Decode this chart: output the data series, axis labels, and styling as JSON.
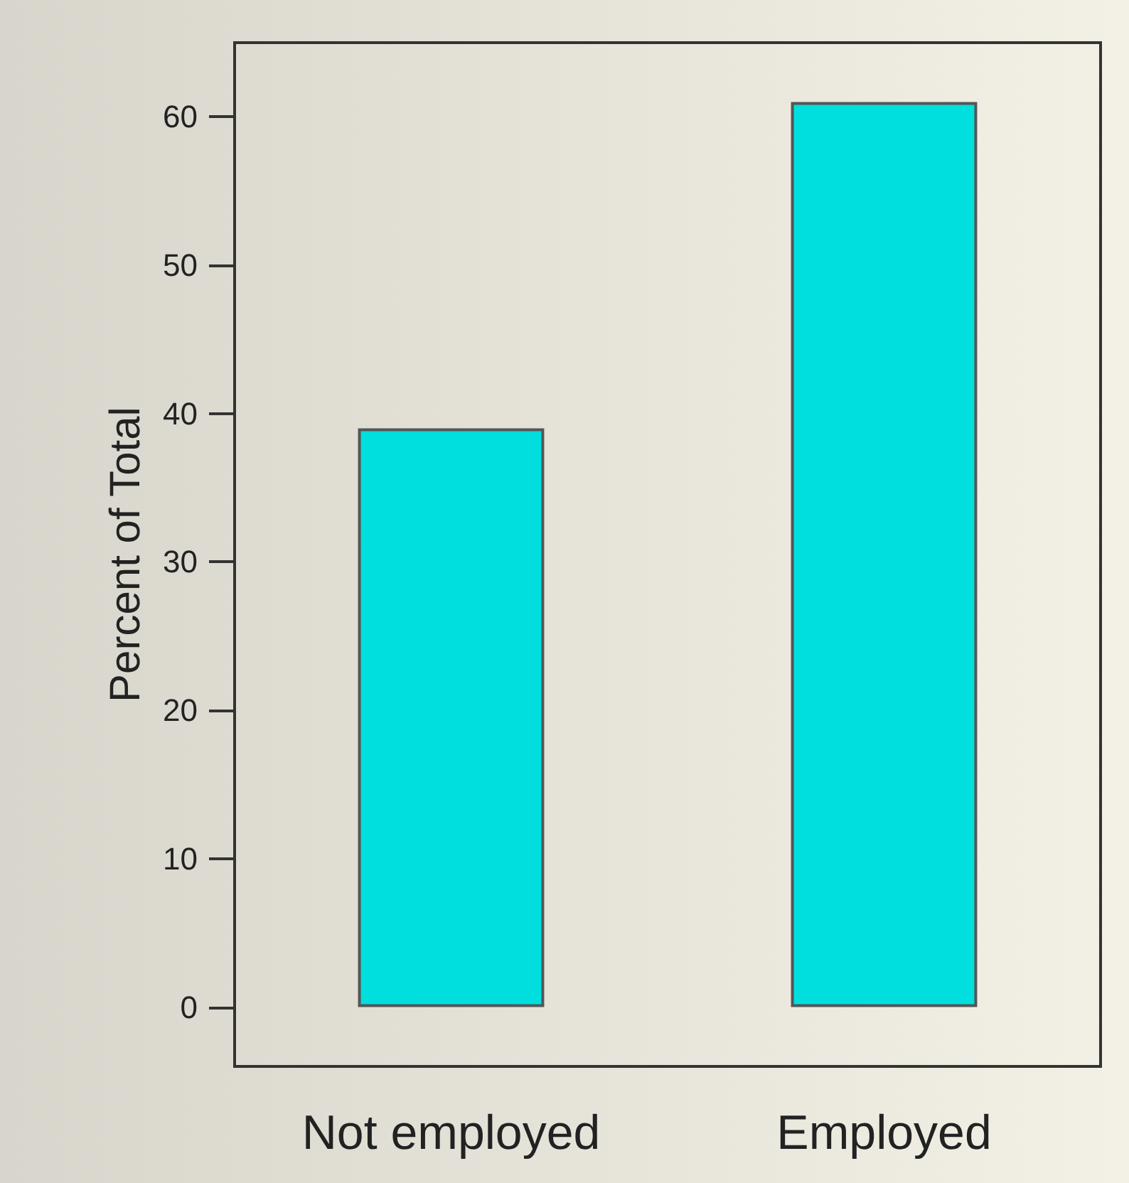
{
  "chart_data": {
    "type": "bar",
    "ylabel": "Percent of Total",
    "categories": [
      "Not employed",
      "Employed"
    ],
    "values": [
      39,
      61
    ],
    "color": "#00dede",
    "ylim": [
      -4,
      65
    ],
    "yticks": [
      0,
      10,
      20,
      30,
      40,
      50,
      60
    ]
  }
}
